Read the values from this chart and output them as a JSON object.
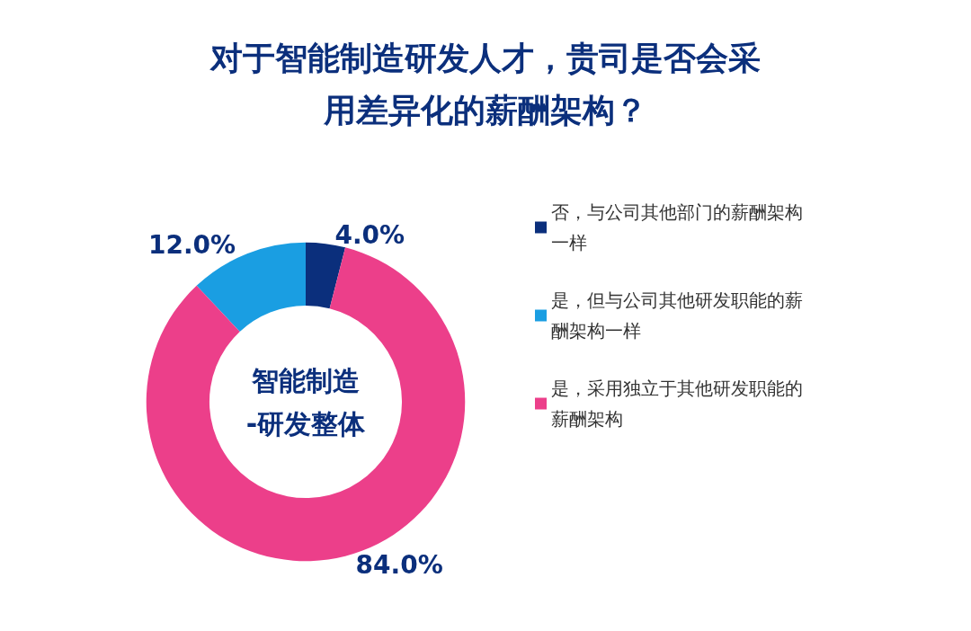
{
  "chart_data": {
    "type": "donut",
    "title": "对于智能制造研发人才，贵司是否会采用差异化的薪酬架构？",
    "categories": [
      "否，与公司其他部门的薪酬架构一样",
      "是，但与公司其他研发职能的薪酬架构一样",
      "是，采用独立于其他研发职能的薪酬架构"
    ],
    "values": [
      4,
      12,
      84
    ],
    "colors": [
      "#0b2f7c",
      "#1a9ee2",
      "#ec3f8a"
    ],
    "value_labels": [
      "4.0%",
      "12.0%",
      "84.0%"
    ],
    "annotations": [
      "智能制造\n-研发整体"
    ],
    "legend": "right"
  }
}
